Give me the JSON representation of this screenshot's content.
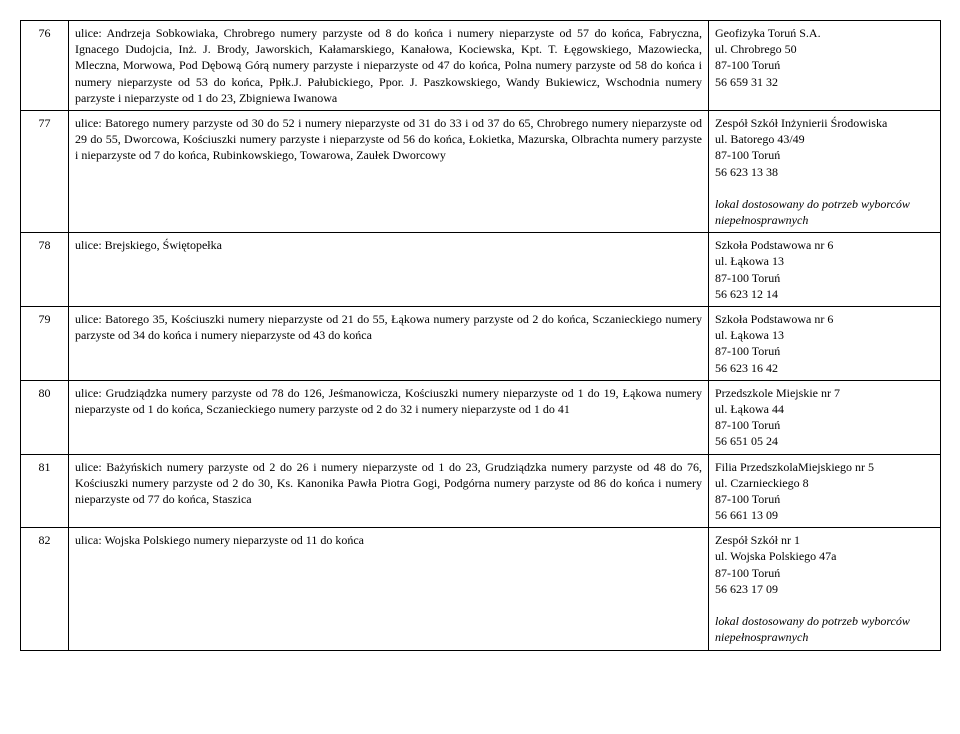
{
  "rows": [
    {
      "num": "76",
      "desc": "ulice: Andrzeja Sobkowiaka, Chrobrego numery parzyste od 8 do końca i numery nieparzyste od 57 do końca, Fabryczna, Ignacego Dudojcia, Inż. J. Brody, Jaworskich, Kałamarskiego, Kanałowa, Kociewska, Kpt. T. Łęgowskiego, Mazowiecka, Mleczna, Morwowa, Pod Dębową Górą numery parzyste i nieparzyste od 47 do końca, Polna numery parzyste od 58 do końca i numery nieparzyste od 53 do końca, Ppłk.J. Pałubickiego, Ppor. J. Paszkowskiego, Wandy Bukiewicz, Wschodnia numery parzyste i nieparzyste od 1 do 23, Zbigniewa Iwanowa",
      "right": [
        "Geofizyka Toruń S.A.",
        "ul. Chrobrego 50",
        "87-100 Toruń",
        "56 659 31 32"
      ],
      "right_plain": true
    },
    {
      "num": "77",
      "desc": "ulice: Batorego numery parzyste od 30 do 52 i numery nieparzyste od 31 do 33 i od 37 do 65, Chrobrego numery nieparzyste od 29 do 55, Dworcowa, Kościuszki numery parzyste i  nieparzyste od 56 do końca, Łokietka, Mazurska, Olbrachta numery parzyste i nieparzyste od 7 do końca, Rubinkowskiego, Towarowa, Zaułek Dworcowy",
      "right": [
        "Zespół Szkół Inżynierii Środowiska",
        "ul. Batorego 43/49",
        "87-100 Toruń",
        "56 623 13 38"
      ],
      "right_italic": "lokal dostosowany do potrzeb wyborców niepełnosprawnych"
    },
    {
      "num": "78",
      "desc": "  ulice: Brejskiego, Świętopełka",
      "right": [
        "Szkoła Podstawowa nr 6",
        "ul. Łąkowa 13",
        "87-100 Toruń",
        "56 623 12 14"
      ],
      "right_plain": true
    },
    {
      "num": "79",
      "desc": "ulice: Batorego 35, Kościuszki numery nieparzyste od 21 do 55, Łąkowa numery parzyste od 2 do końca, Sczanieckiego numery parzyste od 34 do końca i numery nieparzyste od 43 do końca",
      "right": [
        "Szkoła Podstawowa nr 6",
        "ul. Łąkowa 13",
        "87-100 Toruń",
        "56 623 16 42"
      ],
      "right_plain": true
    },
    {
      "num": "80",
      "desc": "ulice: Grudziądzka numery parzyste od 78 do 126, Jeśmanowicza, Kościuszki numery nieparzyste od 1 do 19, Łąkowa numery nieparzyste od 1 do końca, Sczanieckiego numery parzyste od 2 do 32 i numery nieparzyste od 1 do 41",
      "right": [
        "Przedszkole Miejskie nr 7",
        "ul. Łąkowa 44",
        "87-100 Toruń",
        "56 651 05 24"
      ],
      "right_plain": true
    },
    {
      "num": "81",
      "desc": "ulice: Bażyńskich numery parzyste od 2 do 26  i numery nieparzyste od 1 do 23, Grudziądzka numery parzyste od 48 do 76,  Kościuszki numery parzyste od 2 do 30, Ks. Kanonika Pawła Piotra Gogi, Podgórna numery parzyste od 86 do końca i numery nieparzyste od 77 do końca, Staszica",
      "right": [
        "Filia PrzedszkolaMiejskiego nr 5",
        "ul. Czarnieckiego 8",
        "87-100 Toruń",
        "56 661 13 09"
      ],
      "right_plain": true
    },
    {
      "num": "82",
      "desc": "ulica: Wojska Polskiego numery nieparzyste od 11 do końca",
      "right": [
        "Zespół Szkół nr 1",
        "ul. Wojska Polskiego 47a",
        "87-100 Toruń",
        "56 623 17 09"
      ],
      "right_italic": "lokal dostosowany do potrzeb wyborców niepełnosprawnych"
    }
  ]
}
